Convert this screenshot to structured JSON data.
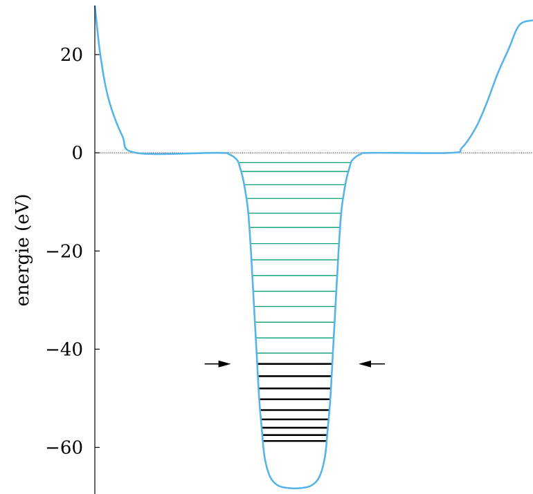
{
  "chart_data": {
    "type": "line",
    "title": "",
    "xlabel": "",
    "ylabel": "energie (eV)",
    "ylim": [
      -69.5,
      30
    ],
    "xlim": [
      -8,
      8
    ],
    "y_ticks": [
      {
        "value": 20,
        "label": "20"
      },
      {
        "value": 0,
        "label": "0"
      },
      {
        "value": -20,
        "label": "−20"
      },
      {
        "value": -40,
        "label": "−40"
      },
      {
        "value": -60,
        "label": "−60"
      }
    ],
    "zero_reference_line": {
      "y": 0,
      "style": "dotted"
    },
    "potential_curve": {
      "color": "#56b4e9",
      "points": [
        [
          -8.0,
          30.0
        ],
        [
          -7.8,
          20.0
        ],
        [
          -7.5,
          11.0
        ],
        [
          -7.0,
          3.5
        ],
        [
          -6.5,
          0.0
        ],
        [
          -3.5,
          0.0
        ],
        [
          -3.1,
          -0.3
        ],
        [
          -2.8,
          -1.5
        ],
        [
          -2.7,
          -3.0
        ],
        [
          -2.6,
          -5.0
        ],
        [
          -2.5,
          -8.0
        ],
        [
          -2.4,
          -12.0
        ],
        [
          -2.3,
          -20.0
        ],
        [
          -2.2,
          -30.0
        ],
        [
          -2.1,
          -40.0
        ],
        [
          -2.0,
          -50.0
        ],
        [
          -1.9,
          -56.5
        ],
        [
          -1.8,
          -62.0
        ],
        [
          -1.6,
          -66.0
        ],
        [
          -1.3,
          -67.8
        ],
        [
          -0.9,
          -68.3
        ],
        [
          -0.5,
          -68.3
        ],
        [
          -0.1,
          -67.8
        ],
        [
          0.2,
          -66.0
        ],
        [
          0.4,
          -62.0
        ],
        [
          0.5,
          -56.5
        ],
        [
          0.6,
          -50.0
        ],
        [
          0.7,
          -40.0
        ],
        [
          0.8,
          -30.0
        ],
        [
          0.9,
          -20.0
        ],
        [
          1.0,
          -12.0
        ],
        [
          1.1,
          -8.0
        ],
        [
          1.2,
          -5.0
        ],
        [
          1.3,
          -3.0
        ],
        [
          1.4,
          -1.5
        ],
        [
          1.7,
          -0.3
        ],
        [
          2.1,
          0.0
        ],
        [
          5.0,
          0.0
        ],
        [
          5.4,
          1.0
        ],
        [
          5.9,
          5.0
        ],
        [
          6.3,
          10.0
        ],
        [
          6.7,
          16.0
        ],
        [
          7.1,
          21.0
        ],
        [
          7.5,
          26.0
        ],
        [
          8.0,
          27.0
        ]
      ]
    },
    "levels": [
      {
        "energy": -2.0,
        "group": "upper"
      },
      {
        "energy": -3.8,
        "group": "upper"
      },
      {
        "energy": -6.5,
        "group": "upper"
      },
      {
        "energy": -9.3,
        "group": "upper"
      },
      {
        "energy": -12.3,
        "group": "upper"
      },
      {
        "energy": -15.2,
        "group": "upper"
      },
      {
        "energy": -18.5,
        "group": "upper"
      },
      {
        "energy": -21.8,
        "group": "upper"
      },
      {
        "energy": -25.0,
        "group": "upper"
      },
      {
        "energy": -28.2,
        "group": "upper"
      },
      {
        "energy": -31.3,
        "group": "upper"
      },
      {
        "energy": -34.5,
        "group": "upper"
      },
      {
        "energy": -37.7,
        "group": "upper"
      },
      {
        "energy": -40.8,
        "group": "upper"
      },
      {
        "energy": -43.0,
        "group": "lower"
      },
      {
        "energy": -45.5,
        "group": "lower"
      },
      {
        "energy": -48.0,
        "group": "lower"
      },
      {
        "energy": -50.2,
        "group": "lower"
      },
      {
        "energy": -52.4,
        "group": "lower"
      },
      {
        "energy": -54.3,
        "group": "lower"
      },
      {
        "energy": -56.0,
        "group": "lower"
      },
      {
        "energy": -57.5,
        "group": "lower"
      },
      {
        "energy": -58.7,
        "group": "lower"
      }
    ],
    "level_colors": {
      "upper": "#009e73",
      "lower": "#000000"
    },
    "markers": [
      {
        "type": "arrow",
        "direction": "right",
        "y": -43.0
      },
      {
        "type": "arrow",
        "direction": "left",
        "y": -43.0
      }
    ]
  }
}
